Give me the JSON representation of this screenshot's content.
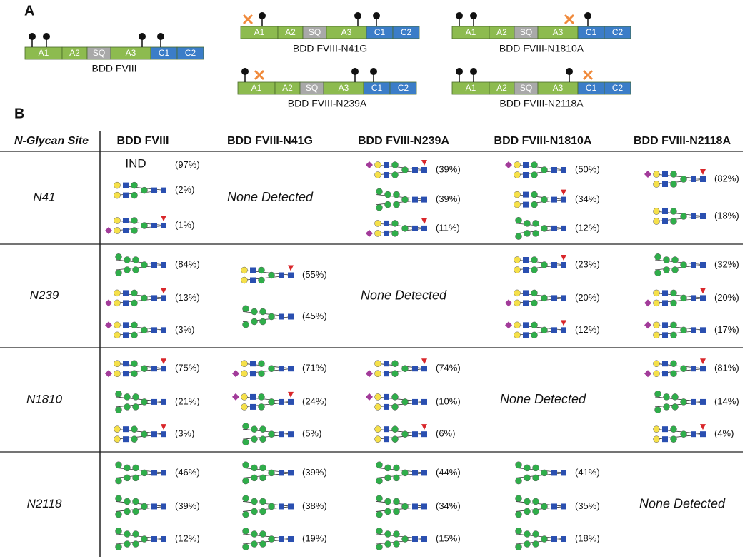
{
  "panel_a": {
    "label": "A",
    "domains": [
      "A1",
      "A2",
      "SQ",
      "A3",
      "C1",
      "C2"
    ],
    "constructs": [
      "BDD FVIII",
      "BDD FVIII-N41G",
      "BDD FVIII-N1810A",
      "BDD FVIII-N239A",
      "BDD FVIII-N2118A"
    ]
  },
  "panel_b": {
    "label": "B",
    "header": [
      "N-Glycan Site",
      "BDD FVIII",
      "BDD FVIII-N41G",
      "BDD FVIII-N239A",
      "BDD FVIII-N1810A",
      "BDD FVIII-N2118A"
    ],
    "rows": [
      {
        "site": "N41",
        "cells": [
          {
            "note": "IND",
            "entries": [
              "(97%)",
              "(2%)",
              "(1%)"
            ]
          },
          {
            "text": "None Detected"
          },
          {
            "entries": [
              "(39%)",
              "(39%)",
              "(11%)"
            ]
          },
          {
            "entries": [
              "(50%)",
              "(34%)",
              "(12%)"
            ]
          },
          {
            "entries": [
              "(82%)",
              "(18%)"
            ]
          }
        ]
      },
      {
        "site": "N239",
        "cells": [
          {
            "entries": [
              "(84%)",
              "(13%)",
              "(3%)"
            ]
          },
          {
            "entries": [
              "(55%)",
              "(45%)"
            ]
          },
          {
            "text": "None Detected"
          },
          {
            "entries": [
              "(23%)",
              "(20%)",
              "(12%)"
            ]
          },
          {
            "entries": [
              "(32%)",
              "(20%)",
              "(17%)"
            ]
          }
        ]
      },
      {
        "site": "N1810",
        "cells": [
          {
            "entries": [
              "(75%)",
              "(21%)",
              "(3%)"
            ]
          },
          {
            "entries": [
              "(71%)",
              "(24%)",
              "(5%)"
            ]
          },
          {
            "entries": [
              "(74%)",
              "(10%)",
              "(6%)"
            ]
          },
          {
            "text": "None Detected"
          },
          {
            "entries": [
              "(81%)",
              "(14%)",
              "(4%)"
            ]
          }
        ]
      },
      {
        "site": "N2118",
        "cells": [
          {
            "entries": [
              "(46%)",
              "(39%)",
              "(12%)"
            ]
          },
          {
            "entries": [
              "(39%)",
              "(38%)",
              "(19%)"
            ]
          },
          {
            "entries": [
              "(44%)",
              "(34%)",
              "(15%)"
            ]
          },
          {
            "entries": [
              "(41%)",
              "(35%)",
              "(18%)"
            ]
          },
          {
            "text": "None Detected"
          }
        ]
      }
    ]
  }
}
